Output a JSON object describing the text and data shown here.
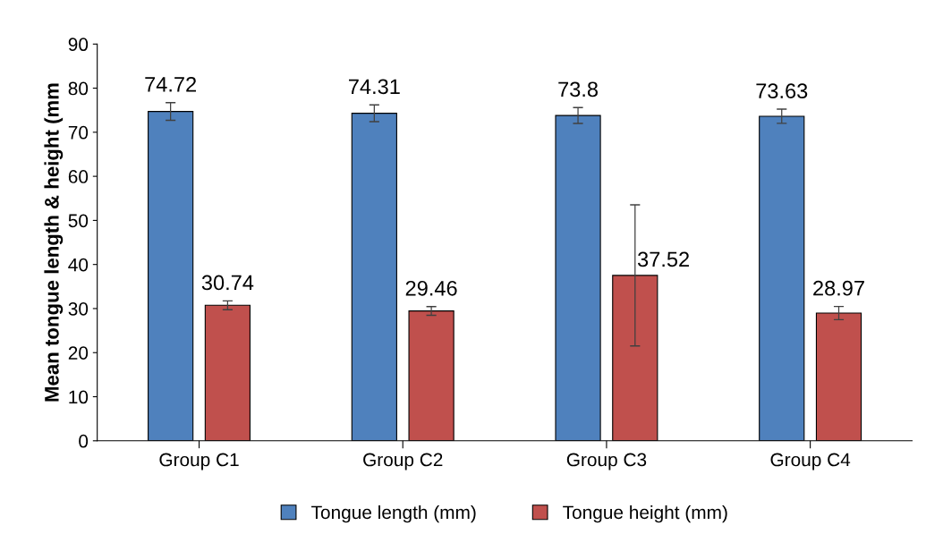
{
  "chart_data": {
    "type": "bar",
    "ylabel": "Mean tongue length & height (mm",
    "categories": [
      "Group C1",
      "Group C2",
      "Group C3",
      "Group C4"
    ],
    "series": [
      {
        "name": "Tongue length (mm)",
        "color": "#4f81bd",
        "values": [
          74.72,
          74.31,
          73.8,
          73.63
        ],
        "errors": [
          2,
          1.9,
          1.8,
          1.6
        ]
      },
      {
        "name": "Tongue height (mm)",
        "color": "#c0504d",
        "values": [
          30.74,
          29.46,
          37.52,
          28.97
        ],
        "errors": [
          1,
          1,
          16,
          1.5
        ]
      }
    ],
    "ylim": [
      0,
      90
    ],
    "yticks": [
      0,
      10,
      20,
      30,
      40,
      50,
      60,
      70,
      80,
      90
    ],
    "data_labels": true,
    "legend": "bottom",
    "grid": false
  }
}
